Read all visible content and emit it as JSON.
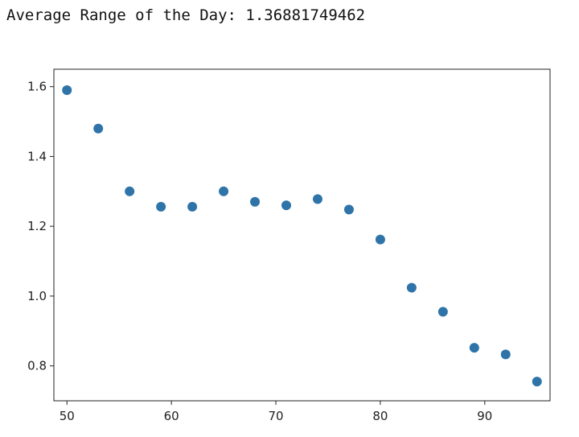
{
  "output": {
    "text": "Average Range of the Day: 1.36881749462"
  },
  "chart_data": {
    "type": "scatter",
    "title": "",
    "xlabel": "",
    "ylabel": "",
    "xlim": [
      48.75,
      96.25
    ],
    "ylim": [
      0.7,
      1.65
    ],
    "x_ticks": [
      50,
      60,
      70,
      80,
      90
    ],
    "y_ticks": [
      0.8,
      1.0,
      1.2,
      1.4,
      1.6
    ],
    "x_tick_labels": [
      "50",
      "60",
      "70",
      "80",
      "90"
    ],
    "y_tick_labels": [
      "0.8",
      "1.0",
      "1.2",
      "1.4",
      "1.6"
    ],
    "grid": false,
    "color": "#2f74a8",
    "series": [
      {
        "x": [
          50,
          53,
          56,
          59,
          62,
          65,
          68,
          71,
          74,
          77,
          80,
          83,
          86,
          89,
          92,
          95
        ],
        "y": [
          1.59,
          1.48,
          1.3,
          1.256,
          1.256,
          1.3,
          1.27,
          1.26,
          1.278,
          1.248,
          1.162,
          1.024,
          0.955,
          0.852,
          0.833,
          0.755
        ]
      }
    ]
  }
}
